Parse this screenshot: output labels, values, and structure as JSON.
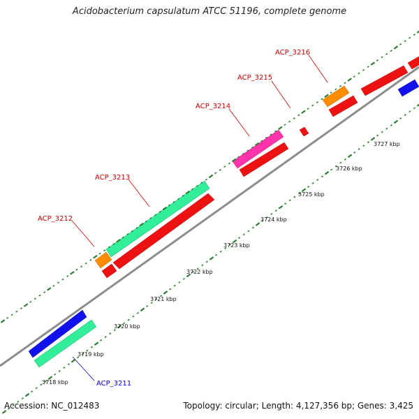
{
  "title": "Acidobacterium capsulatum ATCC 51196, complete genome",
  "footer": {
    "accession_label": "Accession: NC_012483",
    "topology_label": "Topology: circular; Length: 4,127,356 bp; Genes: 3,425"
  },
  "colors": {
    "background": "#ffffff",
    "backbone": "#8c8c8c",
    "tick_dots": "#2e7d32",
    "label_red": "#cc0000",
    "label_blue": "#0000cc"
  },
  "ticks": [
    "3718 kbp",
    "3719 kbp",
    "3720 kbp",
    "3721 kbp",
    "3722 kbp",
    "3723 kbp",
    "3724 kbp",
    "3725 kbp",
    "3726 kbp",
    "3727 kbp"
  ],
  "genes": [
    {
      "id": "ACP_3211",
      "label_color": "#0000cc"
    },
    {
      "id": "ACP_3212",
      "label_color": "#cc0000"
    },
    {
      "id": "ACP_3213",
      "label_color": "#cc0000"
    },
    {
      "id": "ACP_3214",
      "label_color": "#cc0000"
    },
    {
      "id": "ACP_3215",
      "label_color": "#cc0000"
    },
    {
      "id": "ACP_3216",
      "label_color": "#cc0000"
    }
  ]
}
